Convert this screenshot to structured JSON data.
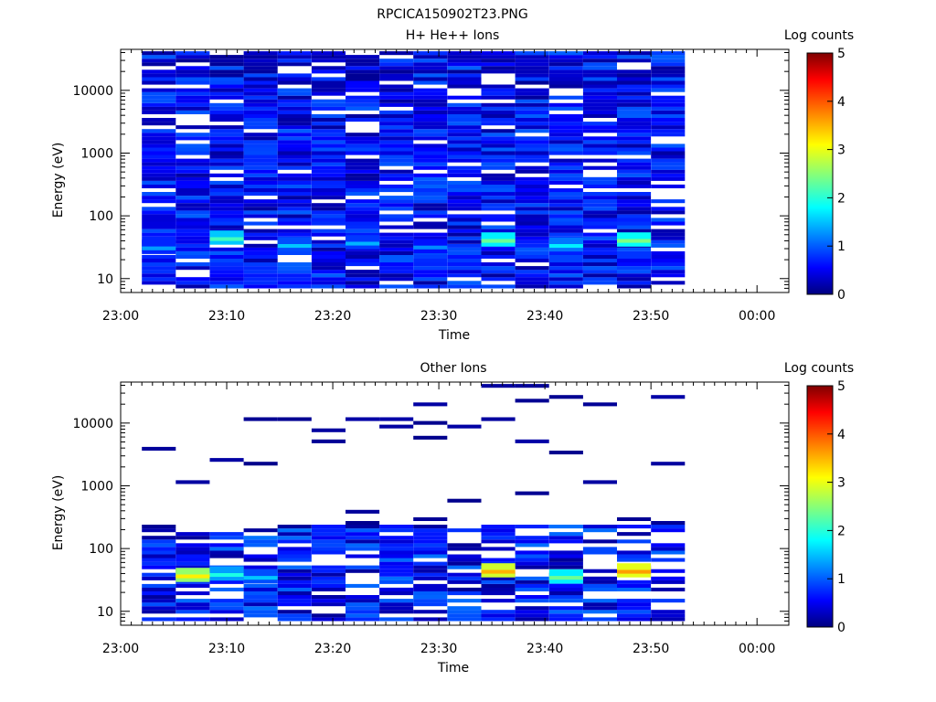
{
  "figure_title": "RPCICA150902T23.PNG",
  "chart_data": [
    {
      "type": "heatmap",
      "title": "H+ He++ Ions",
      "xlabel": "Time",
      "ylabel": "Energy (eV)",
      "x_tick_labels": [
        "23:00",
        "23:10",
        "23:20",
        "23:30",
        "23:40",
        "23:50",
        "00:00"
      ],
      "x_range_minutes": [
        0,
        63
      ],
      "y_tick_labels": [
        "10",
        "100",
        "1000",
        "10000"
      ],
      "y_scale": "log",
      "y_range": [
        6,
        45000
      ],
      "colorbar": {
        "label": "Log counts",
        "ticks": [
          "0",
          "1",
          "2",
          "3",
          "4",
          "5"
        ],
        "range": [
          0,
          5
        ]
      },
      "time_bins": [
        {
          "start": 2.0,
          "end": 5.1
        },
        {
          "start": 5.2,
          "end": 8.3
        },
        {
          "start": 8.4,
          "end": 11.5
        },
        {
          "start": 11.6,
          "end": 14.7
        },
        {
          "start": 14.8,
          "end": 17.9
        },
        {
          "start": 18.0,
          "end": 21.1
        },
        {
          "start": 21.2,
          "end": 24.3
        },
        {
          "start": 24.4,
          "end": 27.5
        },
        {
          "start": 27.6,
          "end": 30.7
        },
        {
          "start": 30.8,
          "end": 33.9
        },
        {
          "start": 34.0,
          "end": 37.1
        },
        {
          "start": 37.2,
          "end": 40.3
        },
        {
          "start": 40.4,
          "end": 43.5
        },
        {
          "start": 43.6,
          "end": 46.7
        },
        {
          "start": 46.8,
          "end": 49.9
        },
        {
          "start": 50.0,
          "end": 53.1
        }
      ],
      "low_energy_peak": [
        {
          "bin": 0,
          "energy": 32,
          "value": 1.4
        },
        {
          "bin": 2,
          "energy": 45,
          "value": 2.2
        },
        {
          "bin": 4,
          "energy": 35,
          "value": 1.6
        },
        {
          "bin": 6,
          "energy": 38,
          "value": 1.5
        },
        {
          "bin": 8,
          "energy": 33,
          "value": 1.3
        },
        {
          "bin": 10,
          "energy": 42,
          "value": 2.4
        },
        {
          "bin": 12,
          "energy": 35,
          "value": 1.8
        },
        {
          "bin": 14,
          "energy": 42,
          "value": 2.5
        }
      ]
    },
    {
      "type": "heatmap",
      "title": "Other Ions",
      "xlabel": "Time",
      "ylabel": "Energy (eV)",
      "x_tick_labels": [
        "23:00",
        "23:10",
        "23:20",
        "23:30",
        "23:40",
        "23:50",
        "00:00"
      ],
      "x_range_minutes": [
        0,
        63
      ],
      "y_tick_labels": [
        "10",
        "100",
        "1000",
        "10000"
      ],
      "y_scale": "log",
      "y_range": [
        6,
        45000
      ],
      "colorbar": {
        "label": "Log counts",
        "ticks": [
          "0",
          "1",
          "2",
          "3",
          "4",
          "5"
        ],
        "range": [
          0,
          5
        ]
      },
      "low_energy_peak": [
        {
          "bin": 1,
          "energy": 38,
          "value": 3.2
        },
        {
          "bin": 2,
          "energy": 40,
          "value": 2.0
        },
        {
          "bin": 3,
          "energy": 36,
          "value": 1.6
        },
        {
          "bin": 10,
          "energy": 45,
          "value": 3.5
        },
        {
          "bin": 12,
          "energy": 36,
          "value": 2.4
        },
        {
          "bin": 14,
          "energy": 45,
          "value": 3.6
        }
      ]
    }
  ]
}
